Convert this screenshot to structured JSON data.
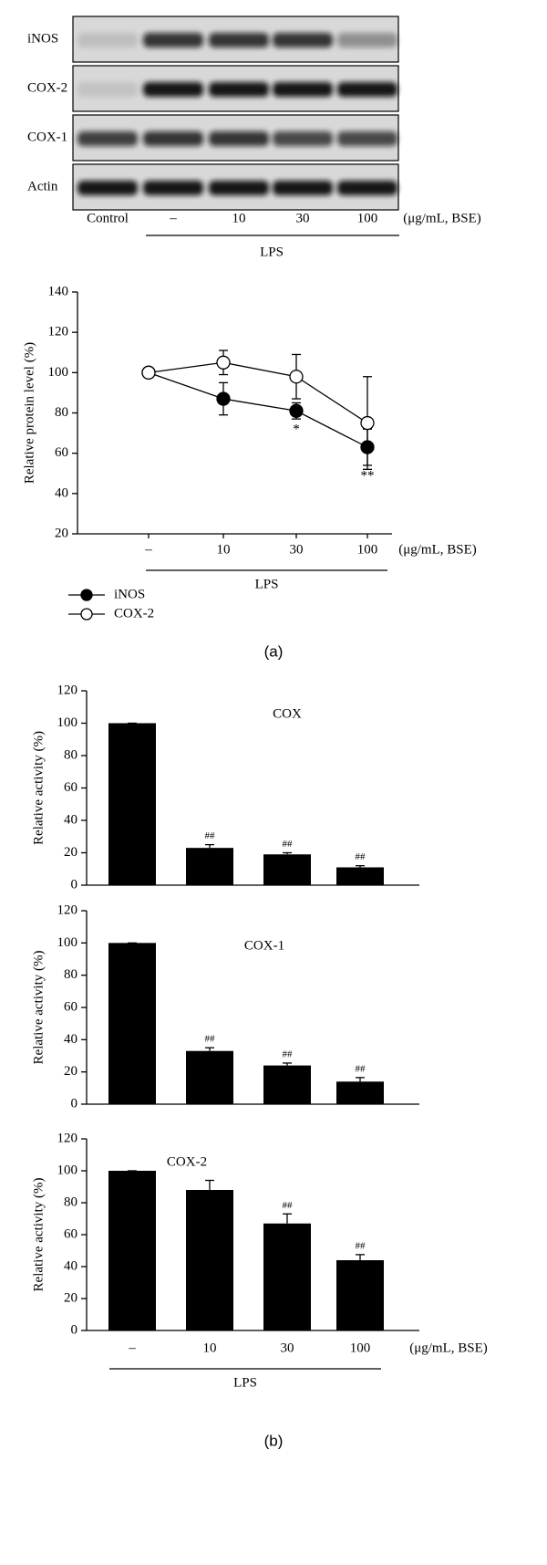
{
  "blot": {
    "rows": [
      "iNOS",
      "COX-2",
      "COX-1",
      "Actin"
    ],
    "lanes": [
      "Control",
      "–",
      "10",
      "30",
      "100"
    ],
    "unit": "(μg/mL, BSE)",
    "group_label": "LPS"
  },
  "panel_labels": [
    "(a)",
    "(b)"
  ],
  "chart_data": [
    {
      "type": "line",
      "y_label": "Relative protein level (%)",
      "categories": [
        "–",
        "10",
        "30",
        "100"
      ],
      "x_label": "(μg/mL, BSE)",
      "group_label": "LPS",
      "ylim": [
        20,
        140
      ],
      "yticks": [
        20,
        40,
        60,
        80,
        100,
        120,
        140
      ],
      "series": [
        {
          "name": "iNOS",
          "color": "#000000",
          "values": [
            100,
            87,
            81,
            63
          ],
          "errors": [
            0,
            8,
            4,
            9
          ],
          "annotations": [
            null,
            null,
            "*",
            "**"
          ]
        },
        {
          "name": "COX-2",
          "color": "#ffffff",
          "values": [
            100,
            105,
            98,
            75
          ],
          "errors": [
            0,
            6,
            11,
            23
          ]
        }
      ]
    },
    {
      "type": "bar",
      "title": "COX",
      "y_label": "Relative activity (%)",
      "ylim": [
        0,
        120
      ],
      "yticks": [
        0,
        20,
        40,
        60,
        80,
        100,
        120
      ],
      "color": "#000000",
      "values": [
        100,
        23,
        19,
        11
      ],
      "errors": [
        0,
        2,
        1,
        1
      ],
      "value_annotations": [
        null,
        "##",
        "##",
        "##"
      ]
    },
    {
      "type": "bar",
      "title": "COX-1",
      "y_label": "Relative activity (%)",
      "ylim": [
        0,
        120
      ],
      "yticks": [
        0,
        20,
        40,
        60,
        80,
        100,
        120
      ],
      "color": "#000000",
      "values": [
        100,
        33,
        24,
        14
      ],
      "errors": [
        0,
        2,
        1.5,
        2.5
      ],
      "value_annotations": [
        null,
        "##",
        "##",
        "##"
      ]
    },
    {
      "type": "bar",
      "title": "COX-2",
      "y_label": "Relative activity (%)",
      "ylim": [
        0,
        120
      ],
      "yticks": [
        0,
        20,
        40,
        60,
        80,
        100,
        120
      ],
      "color": "#000000",
      "values": [
        100,
        88,
        67,
        44
      ],
      "errors": [
        0,
        6,
        6,
        3.5
      ],
      "value_annotations": [
        null,
        null,
        "##",
        "##"
      ],
      "categories": [
        "–",
        "10",
        "30",
        "100"
      ],
      "x_label": "(μg/mL, BSE)",
      "group_label": "LPS"
    }
  ]
}
